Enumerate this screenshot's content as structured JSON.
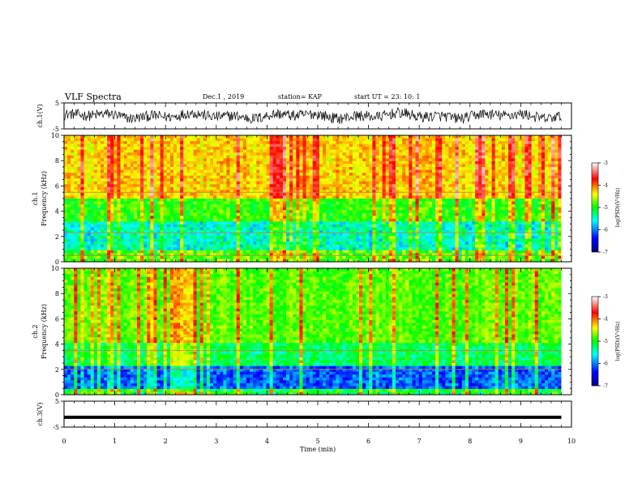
{
  "header": {
    "title": "VLF Spectra",
    "date": "Dec.1 , 2019",
    "station": "station= KAP",
    "start": "start  UT =   23: 10: 1"
  },
  "chart_data": [
    {
      "type": "line",
      "name_label": "ch.1(V)",
      "ylim": [
        -5,
        5
      ],
      "yticks": [
        "5",
        "-5"
      ],
      "xlim": [
        0,
        10
      ],
      "description_values": "noisy waveform oscillating roughly between -3 and 4 V"
    },
    {
      "type": "heatmap",
      "ylabel_channel": "ch.1",
      "ylabel": "Frequency (kHz)",
      "ylim": [
        0,
        10
      ],
      "yticks": [
        "0",
        "2",
        "4",
        "6",
        "8",
        "10"
      ],
      "xlim": [
        0,
        10
      ],
      "data_end_min": 9.8,
      "colorbar": {
        "label": "log(PSD)(V²/Hz)",
        "range": [
          -7,
          -3
        ],
        "ticks": [
          "-3",
          "-4",
          "-5",
          "-6",
          "-7"
        ]
      },
      "bands": {
        "high_band_kHz": [
          5,
          10
        ],
        "mid_band_kHz": [
          3,
          5
        ],
        "low_band_kHz": [
          0,
          3
        ]
      },
      "line_kHz": [
        5.5,
        2.3,
        0.5
      ]
    },
    {
      "type": "heatmap",
      "ylabel_channel": "ch.2",
      "ylabel": "Frequency (kHz)",
      "ylim": [
        0,
        10
      ],
      "yticks": [
        "0",
        "2",
        "4",
        "6",
        "8",
        "10"
      ],
      "xlim": [
        0,
        10
      ],
      "data_end_min": 9.8,
      "colorbar": {
        "label": "log(PSD)(V²/Hz)",
        "range": [
          -7,
          -3
        ],
        "ticks": [
          "-3",
          "-4",
          "-5",
          "-6",
          "-7"
        ]
      },
      "line_kHz": [
        3.5,
        2.0
      ]
    },
    {
      "type": "line",
      "name_label": "ch.3(V)",
      "ylim": [
        -5,
        5
      ],
      "yticks": [
        "5",
        "-5"
      ],
      "xlim": [
        0,
        10
      ],
      "values_constant": -1.2,
      "xlabel": "Time (min)",
      "xticks": [
        "0",
        "1",
        "2",
        "3",
        "4",
        "5",
        "6",
        "7",
        "8",
        "9",
        "10"
      ]
    }
  ]
}
